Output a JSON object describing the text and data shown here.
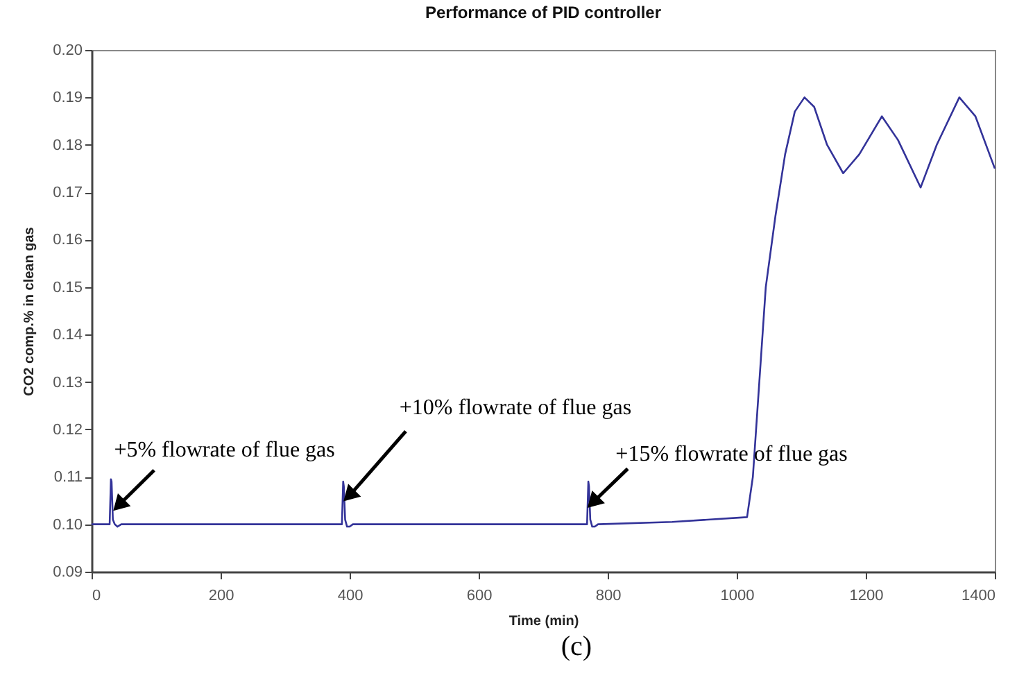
{
  "chart_data": {
    "type": "line",
    "title": "Performance of PID controller",
    "xlabel": "Time (min)",
    "ylabel": "CO2 comp.% in clean gas",
    "xlim": [
      0,
      1400
    ],
    "xticks": [
      0,
      200,
      400,
      600,
      800,
      1000,
      1200,
      1400
    ],
    "ylim": [
      0.09,
      0.2
    ],
    "yticks": [
      0.09,
      {
        "value": 0.1,
        "label": "0.10"
      },
      0.11,
      0.12,
      0.13,
      0.14,
      0.15,
      0.16,
      0.17,
      0.18,
      0.19,
      {
        "value": 0.2,
        "label": "0.20"
      }
    ],
    "grid": false,
    "legend": false,
    "marker": "none",
    "line_style": "solid",
    "series": [
      {
        "color": "#333399",
        "x": [
          0,
          28,
          30,
          31,
          33,
          36,
          40,
          46,
          50,
          55,
          388,
          390,
          391,
          393,
          396,
          400,
          405,
          768,
          770,
          771,
          773,
          776,
          780,
          785,
          900,
          1016,
          1025,
          1035,
          1045,
          1060,
          1075,
          1090,
          1105,
          1120,
          1140,
          1165,
          1190,
          1225,
          1250,
          1285,
          1310,
          1345,
          1370,
          1400
        ],
        "values": [
          0.1,
          0.1,
          0.1095,
          0.109,
          0.101,
          0.1,
          0.0995,
          0.1,
          0.1,
          0.1,
          0.1,
          0.109,
          0.108,
          0.101,
          0.0995,
          0.0995,
          0.1,
          0.1,
          0.109,
          0.108,
          0.101,
          0.0995,
          0.0995,
          0.1,
          0.1005,
          0.1015,
          0.11,
          0.13,
          0.15,
          0.165,
          0.178,
          0.187,
          0.19,
          0.188,
          0.18,
          0.174,
          0.178,
          0.186,
          0.181,
          0.171,
          0.18,
          0.19,
          0.186,
          0.175
        ]
      }
    ],
    "annotations": [
      {
        "text": "+5% flowrate of flue gas",
        "x": 45,
        "y": 0.1044
      },
      {
        "text": "+10% flowrate of flue gas",
        "x": 402,
        "y": 0.1064
      },
      {
        "text": "+15% flowrate of flue gas",
        "x": 780,
        "y": 0.105
      },
      "(c)"
    ]
  }
}
